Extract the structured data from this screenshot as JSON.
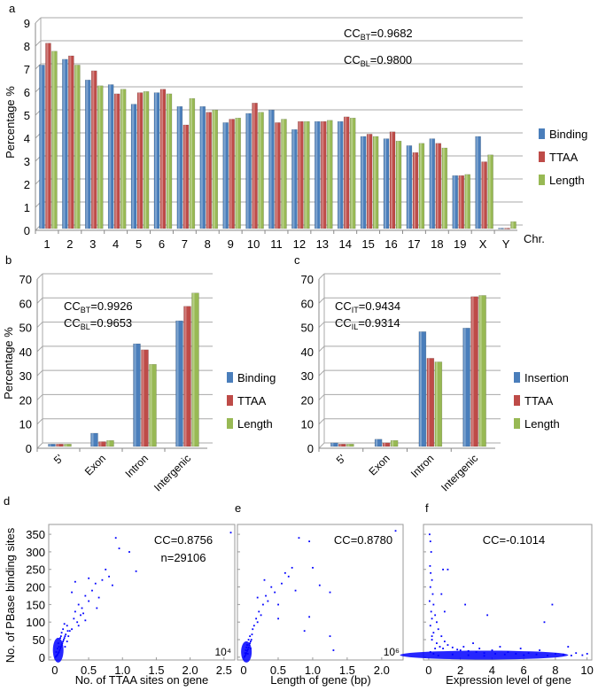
{
  "colors": {
    "binding": "#4a7ebb",
    "ttaa": "#be4b48",
    "length": "#98b954",
    "scatter": "#0000ff"
  },
  "chart_data": [
    {
      "panel": "a",
      "type": "bar",
      "ylabel": "Percentage %",
      "xlabel": "Chr.",
      "ylim": [
        0,
        9
      ],
      "yticks": [
        "0",
        "1",
        "2",
        "3",
        "4",
        "5",
        "6",
        "7",
        "8",
        "9"
      ],
      "grid": true,
      "legend_position": "right",
      "categories": [
        "1",
        "2",
        "3",
        "4",
        "5",
        "6",
        "7",
        "8",
        "9",
        "10",
        "11",
        "12",
        "13",
        "14",
        "15",
        "16",
        "17",
        "18",
        "19",
        "X",
        "Y"
      ],
      "series": [
        {
          "name": "Binding",
          "values": [
            7.1,
            7.35,
            6.45,
            6.25,
            5.4,
            5.9,
            5.3,
            5.3,
            4.6,
            5.0,
            5.15,
            4.3,
            4.65,
            4.65,
            4.0,
            3.9,
            3.6,
            3.9,
            2.3,
            4.0,
            0.02
          ]
        },
        {
          "name": "TTAA",
          "values": [
            8.05,
            7.5,
            6.85,
            5.85,
            5.9,
            6.05,
            4.5,
            5.05,
            4.75,
            5.45,
            4.6,
            4.65,
            4.65,
            4.85,
            4.1,
            4.2,
            3.3,
            3.7,
            2.3,
            2.9,
            0.02
          ]
        },
        {
          "name": "Length",
          "values": [
            7.7,
            7.1,
            6.2,
            6.05,
            5.95,
            5.85,
            5.65,
            5.15,
            4.8,
            5.05,
            4.75,
            4.65,
            4.7,
            4.8,
            4.0,
            3.8,
            3.7,
            3.5,
            2.35,
            3.2,
            0.3
          ]
        }
      ],
      "annotations": [
        {
          "prefix": "CC",
          "sub": "BT",
          "value": "=0.9682"
        },
        {
          "prefix": "CC",
          "sub": "BL",
          "value": "=0.9800"
        }
      ]
    },
    {
      "panel": "b",
      "type": "bar",
      "ylabel": "Percentage %",
      "ylim": [
        0,
        70
      ],
      "yticks": [
        "0",
        "10",
        "20",
        "30",
        "40",
        "50",
        "60",
        "70"
      ],
      "grid": true,
      "legend_position": "right",
      "categories": [
        "5'",
        "Exon",
        "Intron",
        "Intergenic"
      ],
      "series": [
        {
          "name": "Binding",
          "values": [
            1.0,
            5.5,
            42.5,
            52
          ]
        },
        {
          "name": "TTAA",
          "values": [
            1.0,
            2.0,
            40,
            58
          ]
        },
        {
          "name": "Length",
          "values": [
            1.0,
            2.5,
            34,
            63.5
          ]
        }
      ],
      "annotations": [
        {
          "prefix": "CC",
          "sub": "BT",
          "value": "=0.9926"
        },
        {
          "prefix": "CC",
          "sub": "BL",
          "value": "=0.9653"
        }
      ]
    },
    {
      "panel": "c",
      "type": "bar",
      "ylim": [
        0,
        70
      ],
      "yticks": [
        "0",
        "10",
        "20",
        "30",
        "40",
        "50",
        "60",
        "70"
      ],
      "grid": true,
      "legend_position": "right",
      "categories": [
        "5'",
        "Exon",
        "Intron",
        "Intergenic"
      ],
      "series": [
        {
          "name": "Insertion",
          "values": [
            1.5,
            3.0,
            47.5,
            49
          ]
        },
        {
          "name": "TTAA",
          "values": [
            1.0,
            1.5,
            36.5,
            62
          ]
        },
        {
          "name": "Length",
          "values": [
            1.0,
            2.5,
            35,
            62.5
          ]
        }
      ],
      "annotations": [
        {
          "prefix": "CC",
          "sub": "IT",
          "value": "=0.9434"
        },
        {
          "prefix": "CC",
          "sub": "IL",
          "value": "=0.9314"
        }
      ]
    },
    {
      "panel": "d",
      "type": "scatter",
      "ylabel": "No. of PBase binding sites",
      "xlabel": "No. of TTAA sites on gene",
      "x_multiplier": "10⁴",
      "xlim": [
        -0.09,
        2.66
      ],
      "ylim": [
        -8,
        378
      ],
      "xticks": [
        "0",
        "0.5",
        "1.0",
        "1.5",
        "2.0",
        "2.5"
      ],
      "yticks": [
        "0",
        "50",
        "100",
        "150",
        "200",
        "250",
        "300",
        "350"
      ],
      "annotations": [
        "CC=0.8756",
        "n=29106"
      ],
      "points": [
        [
          0.01,
          1
        ],
        [
          0.02,
          3
        ],
        [
          0.03,
          5
        ],
        [
          0.04,
          8
        ],
        [
          0.05,
          12
        ],
        [
          0.06,
          15
        ],
        [
          0.07,
          20
        ],
        [
          0.08,
          25
        ],
        [
          0.09,
          30
        ],
        [
          0.1,
          35
        ],
        [
          0.11,
          40
        ],
        [
          0.12,
          45
        ],
        [
          0.13,
          50
        ],
        [
          0.14,
          55
        ],
        [
          0.15,
          60
        ],
        [
          0.16,
          65
        ],
        [
          0.05,
          40
        ],
        [
          0.08,
          55
        ],
        [
          0.1,
          70
        ],
        [
          0.12,
          80
        ],
        [
          0.04,
          25
        ],
        [
          0.06,
          30
        ],
        [
          0.02,
          15
        ],
        [
          0.15,
          30
        ],
        [
          0.18,
          45
        ],
        [
          0.2,
          60
        ],
        [
          0.22,
          75
        ],
        [
          0.18,
          90
        ],
        [
          0.25,
          80
        ],
        [
          0.28,
          110
        ],
        [
          0.3,
          130
        ],
        [
          0.33,
          100
        ],
        [
          0.35,
          150
        ],
        [
          0.38,
          120
        ],
        [
          0.4,
          140
        ],
        [
          0.42,
          125
        ],
        [
          0.45,
          175
        ],
        [
          0.5,
          160
        ],
        [
          0.55,
          190
        ],
        [
          0.6,
          210
        ],
        [
          0.65,
          170
        ],
        [
          0.7,
          220
        ],
        [
          0.75,
          250
        ],
        [
          0.8,
          230
        ],
        [
          0.85,
          205
        ],
        [
          0.9,
          340
        ],
        [
          0.95,
          310
        ],
        [
          1.1,
          300
        ],
        [
          1.2,
          245
        ],
        [
          0.3,
          215
        ],
        [
          0.25,
          185
        ],
        [
          0.5,
          225
        ],
        [
          0.62,
          140
        ],
        [
          0.14,
          95
        ],
        [
          0.19,
          75
        ],
        [
          0.09,
          60
        ],
        [
          0.45,
          105
        ],
        [
          0.35,
          90
        ],
        [
          2.6,
          355
        ]
      ]
    },
    {
      "panel": "e",
      "type": "scatter",
      "xlabel": "Length of gene (bp)",
      "x_multiplier": "10⁶",
      "xlim": [
        -0.09,
        2.31
      ],
      "ylim": [
        -8,
        378
      ],
      "xticks": [
        "0",
        "0.5",
        "1.0",
        "1.5",
        "2.0"
      ],
      "yticks": [
        "0",
        "50",
        "100",
        "150",
        "200",
        "250",
        "300",
        "350"
      ],
      "annotations": [
        "CC=0.8780"
      ],
      "points": [
        [
          0.01,
          1
        ],
        [
          0.02,
          4
        ],
        [
          0.03,
          8
        ],
        [
          0.04,
          12
        ],
        [
          0.05,
          18
        ],
        [
          0.06,
          22
        ],
        [
          0.07,
          28
        ],
        [
          0.08,
          35
        ],
        [
          0.09,
          40
        ],
        [
          0.1,
          45
        ],
        [
          0.11,
          50
        ],
        [
          0.03,
          20
        ],
        [
          0.05,
          35
        ],
        [
          0.07,
          50
        ],
        [
          0.09,
          60
        ],
        [
          0.12,
          65
        ],
        [
          0.02,
          12
        ],
        [
          0.04,
          28
        ],
        [
          0.06,
          10
        ],
        [
          0.1,
          25
        ],
        [
          0.13,
          80
        ],
        [
          0.15,
          90
        ],
        [
          0.18,
          110
        ],
        [
          0.2,
          100
        ],
        [
          0.22,
          130
        ],
        [
          0.25,
          120
        ],
        [
          0.28,
          150
        ],
        [
          0.3,
          220
        ],
        [
          0.32,
          175
        ],
        [
          0.35,
          160
        ],
        [
          0.4,
          200
        ],
        [
          0.45,
          185
        ],
        [
          0.5,
          150
        ],
        [
          0.55,
          210
        ],
        [
          0.6,
          240
        ],
        [
          0.65,
          230
        ],
        [
          0.7,
          255
        ],
        [
          0.75,
          190
        ],
        [
          0.8,
          340
        ],
        [
          0.95,
          330
        ],
        [
          1.0,
          255
        ],
        [
          1.1,
          205
        ],
        [
          1.25,
          185
        ],
        [
          0.88,
          75
        ],
        [
          0.95,
          115
        ],
        [
          1.3,
          20
        ],
        [
          1.25,
          60
        ],
        [
          0.2,
          170
        ],
        [
          0.5,
          110
        ],
        [
          2.2,
          360
        ]
      ]
    },
    {
      "panel": "f",
      "type": "scatter",
      "xlabel": "Expression level of gene",
      "xlim": [
        -0.33,
        10.3
      ],
      "ylim": [
        -8,
        378
      ],
      "xticks": [
        "0",
        "2",
        "4",
        "6",
        "8",
        "10"
      ],
      "yticks": [
        "0",
        "50",
        "100",
        "150",
        "200",
        "250",
        "300",
        "350"
      ],
      "annotations": [
        "CC=-0.1014"
      ],
      "points": [
        [
          0.05,
          350
        ],
        [
          0.1,
          330
        ],
        [
          0.15,
          300
        ],
        [
          0.08,
          260
        ],
        [
          0.12,
          240
        ],
        [
          0.2,
          220
        ],
        [
          0.1,
          200
        ],
        [
          0.25,
          180
        ],
        [
          0.05,
          160
        ],
        [
          0.3,
          150
        ],
        [
          0.15,
          130
        ],
        [
          0.4,
          120
        ],
        [
          0.2,
          110
        ],
        [
          0.5,
          100
        ],
        [
          0.1,
          90
        ],
        [
          0.6,
          80
        ],
        [
          0.3,
          70
        ],
        [
          0.8,
          60
        ],
        [
          0.2,
          50
        ],
        [
          1.0,
          45
        ],
        [
          0.5,
          40
        ],
        [
          1.2,
          35
        ],
        [
          0.7,
          30
        ],
        [
          1.5,
          28
        ],
        [
          0.9,
          25
        ],
        [
          1.8,
          22
        ],
        [
          2.0,
          20
        ],
        [
          2.2,
          30
        ],
        [
          2.5,
          18
        ],
        [
          2.8,
          40
        ],
        [
          3.0,
          15
        ],
        [
          3.2,
          25
        ],
        [
          3.5,
          12
        ],
        [
          3.7,
          120
        ],
        [
          4.0,
          20
        ],
        [
          4.2,
          10
        ],
        [
          4.5,
          30
        ],
        [
          4.8,
          8
        ],
        [
          5.0,
          15
        ],
        [
          5.5,
          10
        ],
        [
          5.8,
          25
        ],
        [
          6.0,
          6
        ],
        [
          6.3,
          12
        ],
        [
          6.8,
          8
        ],
        [
          7.0,
          20
        ],
        [
          7.3,
          100
        ],
        [
          7.5,
          5
        ],
        [
          7.8,
          150
        ],
        [
          8.0,
          10
        ],
        [
          8.5,
          8
        ],
        [
          8.8,
          30
        ],
        [
          9.0,
          5
        ],
        [
          9.3,
          12
        ],
        [
          9.7,
          6
        ],
        [
          10.0,
          10
        ],
        [
          0.9,
          250
        ],
        [
          1.2,
          250
        ],
        [
          0.8,
          180
        ],
        [
          2.3,
          150
        ],
        [
          1.0,
          130
        ],
        [
          0.3,
          10
        ],
        [
          0.6,
          5
        ],
        [
          1.5,
          8
        ],
        [
          2.5,
          6
        ],
        [
          3.5,
          4
        ],
        [
          0.1,
          15
        ],
        [
          0.4,
          25
        ],
        [
          0.2,
          60
        ]
      ]
    }
  ]
}
